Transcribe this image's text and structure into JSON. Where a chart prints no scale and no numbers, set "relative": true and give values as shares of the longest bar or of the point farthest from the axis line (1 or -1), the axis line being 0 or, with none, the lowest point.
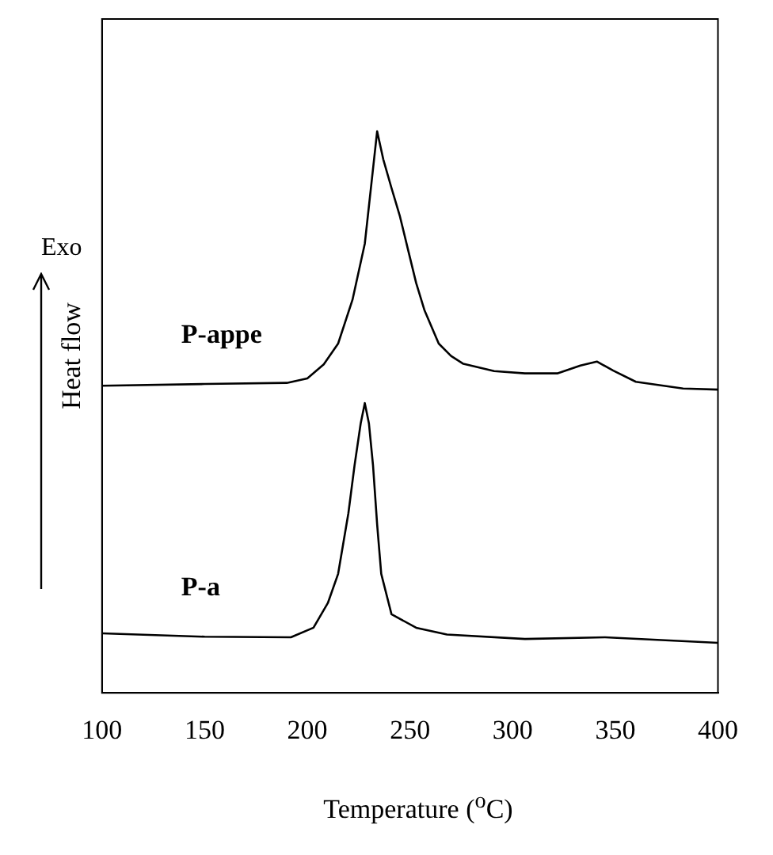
{
  "chart_data": {
    "type": "line",
    "relative": true,
    "xlabel": "Temperature ($^{o}$C)",
    "ylabel": "Heat flow",
    "annotations": [
      "Exo"
    ],
    "xlim": [
      100,
      400
    ],
    "xticks": [
      100,
      150,
      200,
      250,
      300,
      350,
      400
    ],
    "grid": false,
    "legend": false,
    "marker": "none",
    "line_style": "solid",
    "series": [
      {
        "name": "P-appe",
        "color": "#000000",
        "x": [
          100,
          150,
          190,
          200,
          208,
          215,
          222,
          228,
          231,
          234,
          237,
          241,
          245,
          249,
          253,
          257,
          264,
          270,
          276,
          291,
          306,
          322,
          333,
          341,
          349,
          360,
          383,
          400
        ],
        "values": [
          0.547,
          0.55,
          0.552,
          0.56,
          0.585,
          0.622,
          0.7,
          0.8,
          0.9,
          1,
          0.95,
          0.899,
          0.85,
          0.79,
          0.73,
          0.682,
          0.622,
          0.6,
          0.586,
          0.573,
          0.569,
          0.569,
          0.583,
          0.59,
          0.574,
          0.554,
          0.542,
          0.54
        ]
      },
      {
        "name": "P-a",
        "color": "#000000",
        "x": [
          100,
          150,
          192,
          203,
          210,
          215,
          220,
          223,
          226,
          228,
          230,
          232,
          234,
          236,
          241,
          253,
          268,
          306,
          345,
          400
        ],
        "values": [
          0.106,
          0.1,
          0.099,
          0.116,
          0.16,
          0.212,
          0.32,
          0.405,
          0.48,
          0.516,
          0.48,
          0.405,
          0.3,
          0.212,
          0.14,
          0.116,
          0.104,
          0.096,
          0.099,
          0.089
        ]
      }
    ]
  }
}
